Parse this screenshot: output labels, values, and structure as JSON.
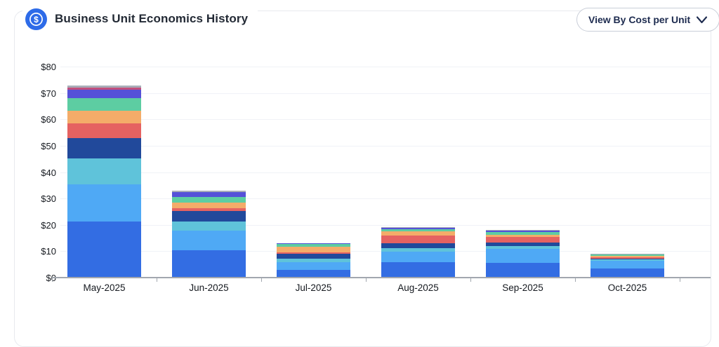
{
  "header": {
    "title": "Business Unit Economics History",
    "icon": "dollar-circle-icon",
    "view_by": {
      "label": "View By Cost per Unit"
    }
  },
  "chart_data": {
    "type": "bar",
    "stacked": true,
    "title": "Business Unit Economics History",
    "categories": [
      "May-2025",
      "Jun-2025",
      "Jul-2025",
      "Aug-2025",
      "Sep-2025",
      "Oct-2025"
    ],
    "series": [
      {
        "name": "royal-blue",
        "color": "#336DE3",
        "values": [
          21.0,
          10.0,
          2.7,
          5.5,
          5.3,
          3.2
        ]
      },
      {
        "name": "light-blue",
        "color": "#4FA9F5",
        "values": [
          14.0,
          7.5,
          3.0,
          4.2,
          5.4,
          3.0
        ]
      },
      {
        "name": "teal",
        "color": "#5FC3DA",
        "values": [
          10.0,
          3.4,
          1.2,
          1.2,
          1.0,
          0.4
        ]
      },
      {
        "name": "navy",
        "color": "#21499B",
        "values": [
          7.7,
          4.2,
          1.8,
          1.8,
          1.4,
          0.3
        ]
      },
      {
        "name": "red",
        "color": "#E56261",
        "values": [
          5.5,
          0.9,
          0.7,
          3.0,
          2.0,
          0.5
        ]
      },
      {
        "name": "orange",
        "color": "#F4AC69",
        "values": [
          4.8,
          2.2,
          2.0,
          1.5,
          0.8,
          0.7
        ]
      },
      {
        "name": "green",
        "color": "#5DCDA2",
        "values": [
          4.7,
          2.2,
          1.0,
          0.8,
          1.0,
          0.4
        ]
      },
      {
        "name": "purple",
        "color": "#5551D8",
        "values": [
          3.3,
          1.8,
          0.4,
          0.6,
          0.6,
          0.0
        ]
      },
      {
        "name": "magenta",
        "color": "#C14F7D",
        "values": [
          0.7,
          0.0,
          0.0,
          0.1,
          0.1,
          0.0
        ]
      },
      {
        "name": "gray",
        "color": "#A9AEB8",
        "values": [
          0.8,
          0.5,
          0.0,
          0.1,
          0.1,
          0.3
        ]
      }
    ],
    "totals": [
      72.5,
      32.7,
      12.8,
      18.8,
      17.7,
      8.8
    ],
    "xlabel": "",
    "ylabel": "",
    "y_ticks": [
      "$0",
      "$10",
      "$20",
      "$30",
      "$40",
      "$50",
      "$60",
      "$70",
      "$80"
    ],
    "ylim": [
      0,
      80
    ],
    "grid": true,
    "legend": false
  }
}
